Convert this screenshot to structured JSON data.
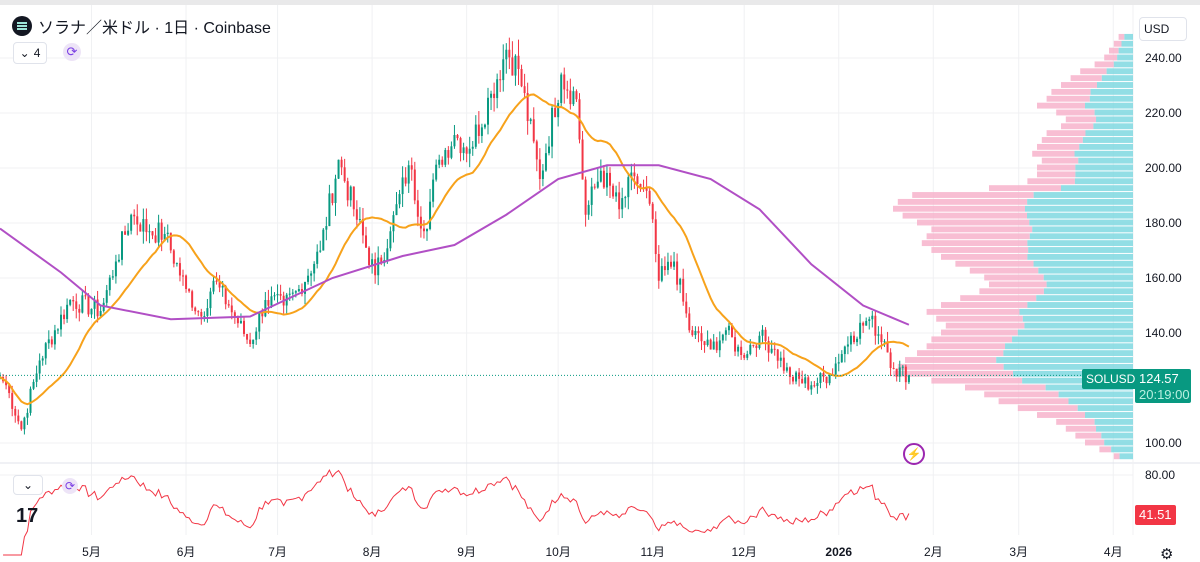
{
  "header": {
    "title": "ソラナ／米ドル · 1日 · Coinbase",
    "indicator_count": "4",
    "currency": "USD"
  },
  "colors": {
    "up": "#089981",
    "down": "#f23645",
    "ma_fast": "#f7a21b",
    "ma_slow": "#b14fc5",
    "rsi": "#f23645",
    "profile_up": "#7fd8e0",
    "profile_down": "#f7b3cb",
    "accent": "#9c27b0"
  },
  "price_label": {
    "symbol": "SOLUSD",
    "price": "124.57",
    "countdown": "20:19:00"
  },
  "rsi_label": "41.51",
  "chart_data": {
    "type": "candlestick",
    "title": "ソラナ／米ドル · 1日 · Coinbase",
    "y_ticks": [
      "240.00",
      "220.00",
      "200.00",
      "180.00",
      "160.00",
      "140.00",
      "100.00"
    ],
    "y_tick_values": [
      240,
      220,
      200,
      180,
      160,
      140,
      100
    ],
    "ylim": [
      92,
      252
    ],
    "rsi_ticks": [
      "80.00"
    ],
    "x_ticks": [
      {
        "label": "5月",
        "date": "2025-05-01"
      },
      {
        "label": "6月",
        "date": "2025-06-01"
      },
      {
        "label": "7月",
        "date": "2025-07-01"
      },
      {
        "label": "8月",
        "date": "2025-08-01"
      },
      {
        "label": "9月",
        "date": "2025-09-01"
      },
      {
        "label": "10月",
        "date": "2025-10-01"
      },
      {
        "label": "11月",
        "date": "2025-11-01"
      },
      {
        "label": "12月",
        "date": "2025-12-01"
      },
      {
        "label": "2026",
        "date": "2026-01-01"
      },
      {
        "label": "2月",
        "date": "2026-02-01"
      },
      {
        "label": "3月",
        "date": "2026-03-01"
      },
      {
        "label": "4月",
        "date": "2026-04-01"
      }
    ],
    "xlim": [
      "2025-04-01",
      "2026-04-12"
    ],
    "close_keypoints": [
      [
        "2025-04-01",
        124
      ],
      [
        "2025-04-03",
        121
      ],
      [
        "2025-04-08",
        105
      ],
      [
        "2025-04-14",
        130
      ],
      [
        "2025-04-24",
        152
      ],
      [
        "2025-05-04",
        148
      ],
      [
        "2025-05-09",
        166
      ],
      [
        "2025-05-14",
        183
      ],
      [
        "2025-05-20",
        177
      ],
      [
        "2025-05-25",
        176
      ],
      [
        "2025-06-01",
        156
      ],
      [
        "2025-06-06",
        146
      ],
      [
        "2025-06-10",
        159
      ],
      [
        "2025-06-15",
        150
      ],
      [
        "2025-06-22",
        136
      ],
      [
        "2025-06-27",
        152
      ],
      [
        "2025-07-03",
        150
      ],
      [
        "2025-07-08",
        156
      ],
      [
        "2025-07-15",
        170
      ],
      [
        "2025-07-21",
        203
      ],
      [
        "2025-07-26",
        185
      ],
      [
        "2025-08-02",
        161
      ],
      [
        "2025-08-07",
        177
      ],
      [
        "2025-08-13",
        201
      ],
      [
        "2025-08-18",
        177
      ],
      [
        "2025-08-23",
        203
      ],
      [
        "2025-08-28",
        212
      ],
      [
        "2025-09-02",
        207
      ],
      [
        "2025-09-09",
        227
      ],
      [
        "2025-09-14",
        243
      ],
      [
        "2025-09-18",
        236
      ],
      [
        "2025-09-25",
        196
      ],
      [
        "2025-10-02",
        234
      ],
      [
        "2025-10-07",
        225
      ],
      [
        "2025-10-10",
        183
      ],
      [
        "2025-10-15",
        199
      ],
      [
        "2025-10-21",
        185
      ],
      [
        "2025-10-26",
        197
      ],
      [
        "2025-10-31",
        187
      ],
      [
        "2025-11-03",
        159
      ],
      [
        "2025-11-08",
        166
      ],
      [
        "2025-11-13",
        141
      ],
      [
        "2025-11-20",
        134
      ],
      [
        "2025-11-25",
        141
      ],
      [
        "2025-11-30",
        132
      ],
      [
        "2025-12-06",
        139
      ],
      [
        "2025-12-11",
        134
      ],
      [
        "2025-12-16",
        124
      ],
      [
        "2025-12-23",
        121
      ],
      [
        "2025-12-29",
        125
      ],
      [
        "2026-01-05",
        139
      ],
      [
        "2026-01-11",
        145
      ],
      [
        "2026-01-16",
        137
      ],
      [
        "2026-01-19",
        127
      ],
      [
        "2026-01-24",
        124.57
      ]
    ],
    "ma_slow_keypoints": [
      [
        "2025-04-01",
        178
      ],
      [
        "2025-04-21",
        162
      ],
      [
        "2025-05-04",
        150
      ],
      [
        "2025-05-27",
        145
      ],
      [
        "2025-06-22",
        146
      ],
      [
        "2025-07-19",
        160
      ],
      [
        "2025-08-11",
        168
      ],
      [
        "2025-08-28",
        172
      ],
      [
        "2025-09-14",
        183
      ],
      [
        "2025-10-01",
        196
      ],
      [
        "2025-10-17",
        201
      ],
      [
        "2025-11-03",
        201
      ],
      [
        "2025-11-20",
        196
      ],
      [
        "2025-12-06",
        185
      ],
      [
        "2025-12-23",
        165
      ],
      [
        "2026-01-09",
        150
      ],
      [
        "2026-01-24",
        143
      ]
    ],
    "ma_fast_period": 20,
    "volume_profile": {
      "bin_start": 95,
      "bin_size": 2.5,
      "total": [
        8,
        14,
        20,
        24,
        28,
        32,
        40,
        48,
        56,
        62,
        70,
        84,
        100,
        98,
        95,
        90,
        86,
        84,
        80,
        78,
        82,
        86,
        80,
        72,
        64,
        60,
        62,
        68,
        74,
        80,
        84,
        88,
        86,
        84,
        90,
        96,
        100,
        98,
        92,
        60,
        44,
        40,
        40,
        38,
        42,
        40,
        38,
        36,
        30,
        28,
        32,
        40,
        36,
        34,
        30,
        26,
        22,
        16,
        12,
        10,
        8,
        6
      ],
      "up_share": [
        0.7,
        0.65,
        0.6,
        0.55,
        0.55,
        0.5,
        0.5,
        0.48,
        0.48,
        0.5,
        0.52,
        0.55,
        0.5,
        0.55,
        0.6,
        0.6,
        0.62,
        0.6,
        0.6,
        0.58,
        0.56,
        0.55,
        0.55,
        0.56,
        0.58,
        0.6,
        0.6,
        0.58,
        0.56,
        0.55,
        0.52,
        0.5,
        0.5,
        0.5,
        0.48,
        0.46,
        0.45,
        0.45,
        0.45,
        0.5,
        0.55,
        0.6,
        0.6,
        0.6,
        0.58,
        0.56,
        0.55,
        0.55,
        0.55,
        0.55,
        0.5,
        0.5,
        0.5,
        0.52,
        0.5,
        0.5,
        0.5,
        0.5,
        0.55,
        0.6,
        0.6,
        0.6
      ]
    }
  }
}
